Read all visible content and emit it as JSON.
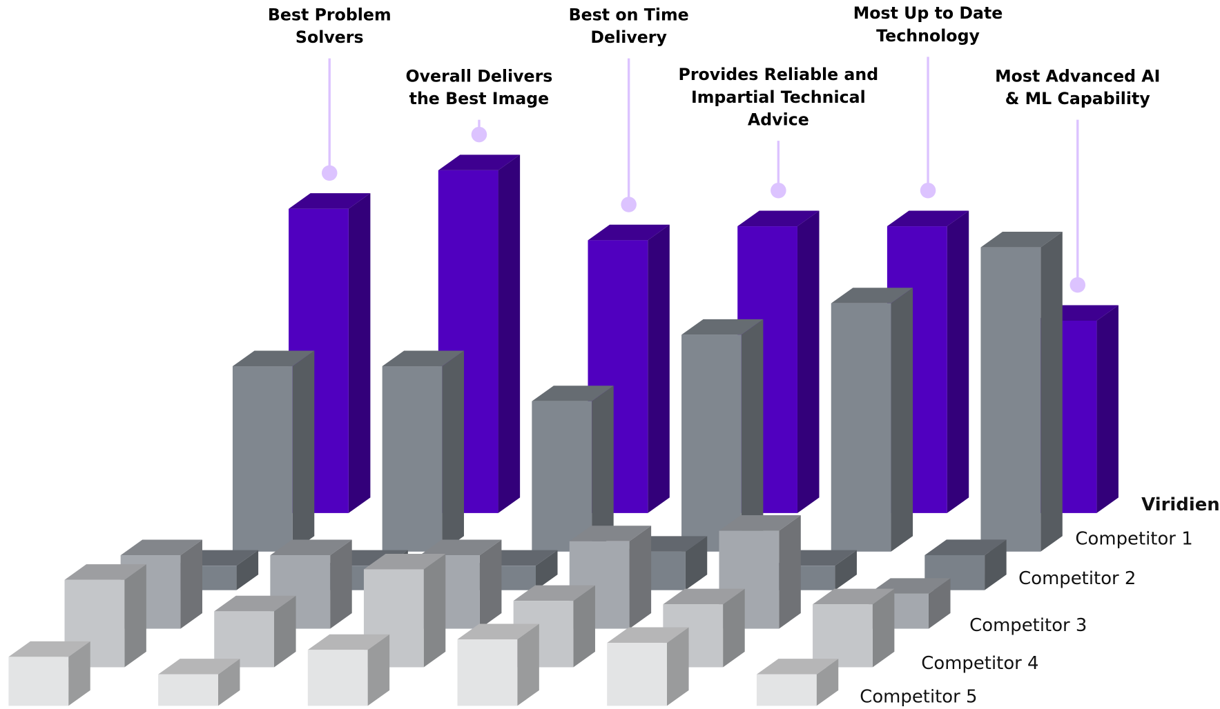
{
  "chart_data": {
    "type": "bar3d",
    "categories": [
      "Best Problem Solvers",
      "Overall Delivers the Best Image",
      "Best on Time Delivery",
      "Provides Reliable and Impartial Technical Advice",
      "Most Up to Date Technology",
      "Most Advanced AI & ML Capability"
    ],
    "series": [
      {
        "name": "Viridien",
        "color": "#5000bf",
        "values": [
          87,
          98,
          78,
          82,
          82,
          55
        ]
      },
      {
        "name": "Competitor 1",
        "color": "#80878f",
        "values": [
          53,
          53,
          43,
          62,
          71,
          87
        ]
      },
      {
        "name": "Competitor 2",
        "color": "#7a8189",
        "values": [
          7,
          7,
          7,
          11,
          7,
          10
        ]
      },
      {
        "name": "Competitor 3",
        "color": "#a4a8ae",
        "values": [
          21,
          21,
          21,
          25,
          28,
          10
        ]
      },
      {
        "name": "Competitor 4",
        "color": "#c4c6c9",
        "values": [
          25,
          16,
          28,
          19,
          18,
          18
        ]
      },
      {
        "name": "Competitor 5",
        "color": "#e3e4e5",
        "values": [
          14,
          9,
          16,
          19,
          18,
          9
        ]
      }
    ]
  }
}
